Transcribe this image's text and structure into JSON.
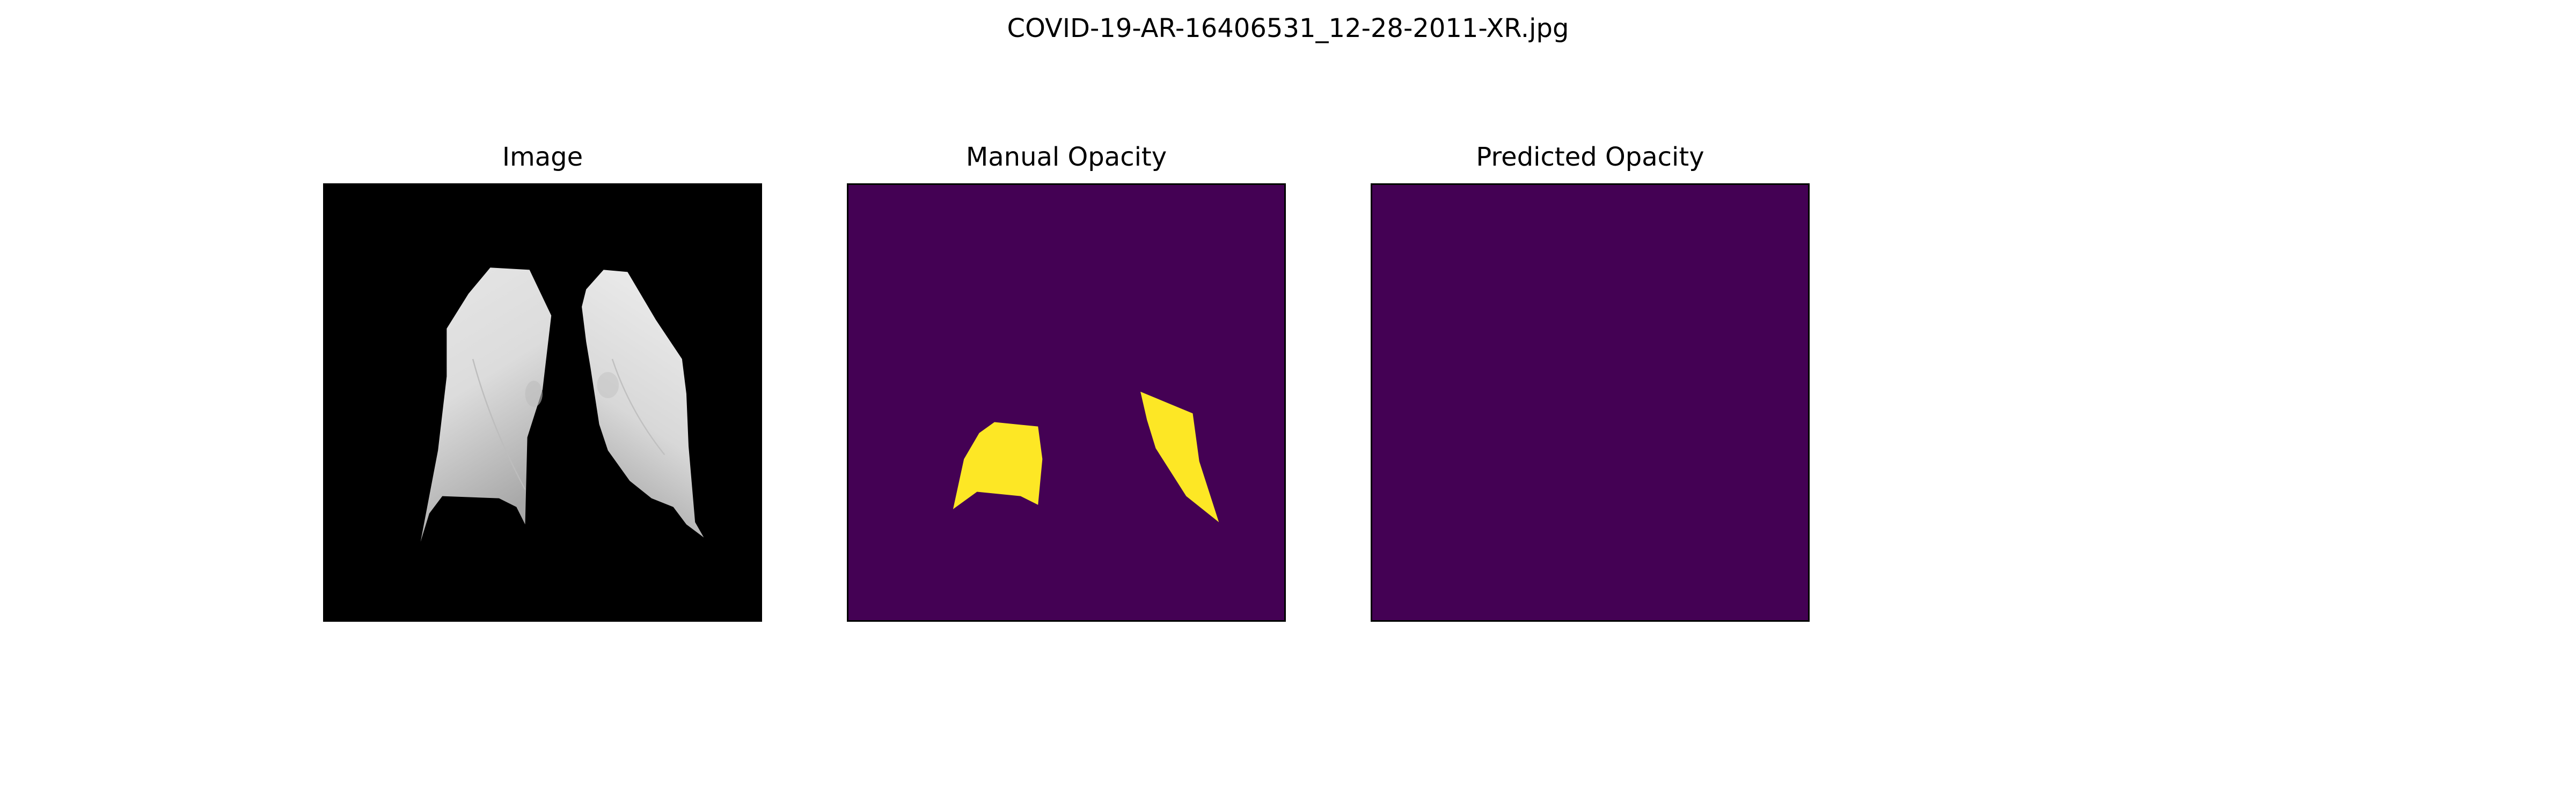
{
  "figure": {
    "title": "COVID-19-AR-16406531_12-28-2011-XR.jpg"
  },
  "panels": [
    {
      "title": "Image",
      "content": "chest x-ray lungs segmented on black background"
    },
    {
      "title": "Manual Opacity",
      "content": "mask with two opacity regions"
    },
    {
      "title": "Predicted Opacity",
      "content": "empty mask"
    }
  ],
  "colors": {
    "mask_background": "#440154",
    "mask_foreground": "#fde725",
    "image_background": "#000000",
    "lung_light": "#e9e9e9",
    "lung_dark": "#9a9a9a"
  }
}
